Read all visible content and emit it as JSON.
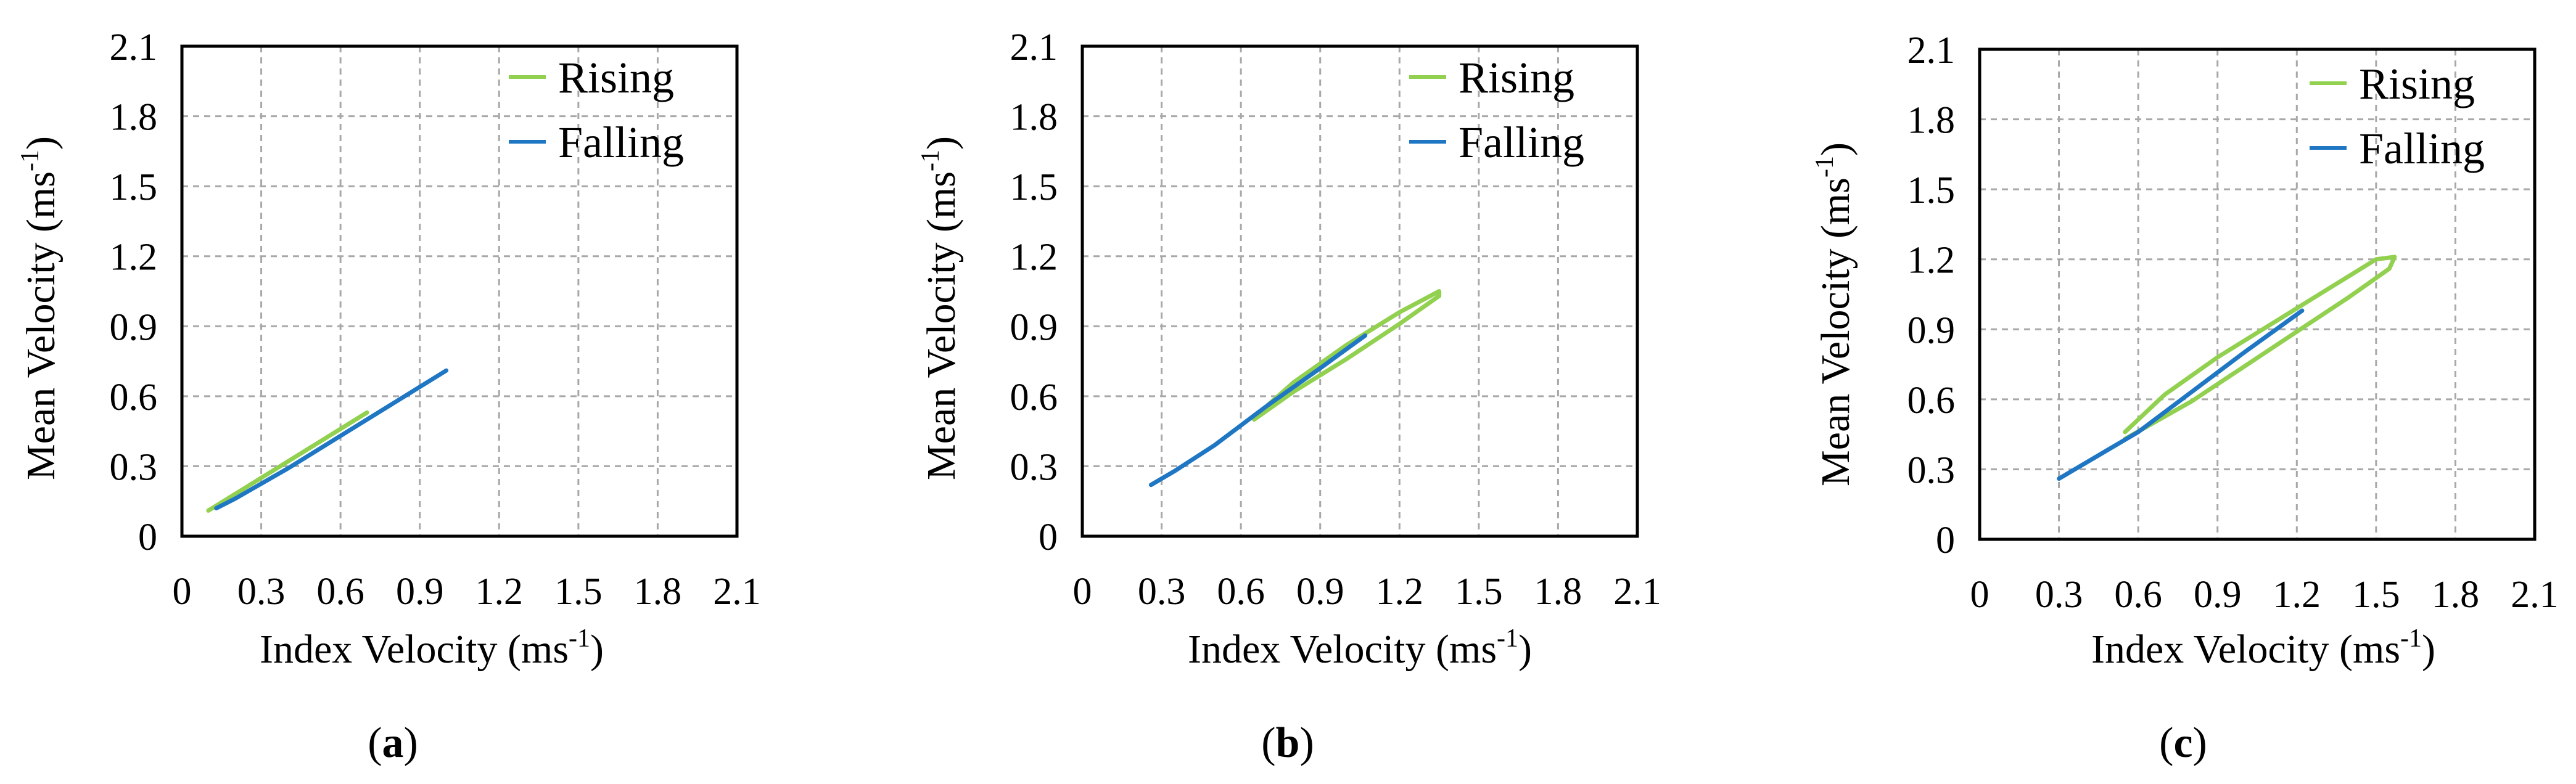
{
  "colors": {
    "rising": "#92d050",
    "falling": "#1f77c4",
    "grid": "#a8a8a8",
    "axis": "#000000"
  },
  "chart_data": [
    {
      "type": "line",
      "panel_label": "a",
      "xlabel": "Index Velocity (ms",
      "xlabel_sup": "-1",
      "xlabel_close": ")",
      "ylabel": "Mean Velocity (ms",
      "ylabel_sup": "-1",
      "ylabel_close": ")",
      "xlim": [
        0,
        2.1
      ],
      "ylim": [
        0,
        2.1
      ],
      "xticks": [
        "0",
        "0.3",
        "0.6",
        "0.9",
        "1.2",
        "1.5",
        "1.8",
        "2.1"
      ],
      "yticks": [
        "0",
        "0.3",
        "0.6",
        "0.9",
        "1.2",
        "1.5",
        "1.8",
        "2.1"
      ],
      "grid": true,
      "legend": "top-right",
      "series": [
        {
          "name": "Rising",
          "color": "#92d050",
          "x": [
            0.1,
            0.3,
            0.5,
            0.7
          ],
          "y": [
            0.11,
            0.25,
            0.39,
            0.53
          ]
        },
        {
          "name": "Falling",
          "color": "#1f77c4",
          "x": [
            1.0,
            0.8,
            0.6,
            0.4,
            0.2,
            0.13
          ],
          "y": [
            0.71,
            0.57,
            0.43,
            0.29,
            0.16,
            0.12
          ]
        }
      ]
    },
    {
      "type": "line",
      "panel_label": "b",
      "xlabel": "Index Velocity (ms",
      "xlabel_sup": "-1",
      "xlabel_close": ")",
      "ylabel": "Mean Velocity (ms",
      "ylabel_sup": "-1",
      "ylabel_close": ")",
      "xlim": [
        0,
        2.1
      ],
      "ylim": [
        0,
        2.1
      ],
      "xticks": [
        "0",
        "0.3",
        "0.6",
        "0.9",
        "1.2",
        "1.5",
        "1.8",
        "2.1"
      ],
      "yticks": [
        "0",
        "0.3",
        "0.6",
        "0.9",
        "1.2",
        "1.5",
        "1.8",
        "2.1"
      ],
      "grid": true,
      "legend": "top-right",
      "series": [
        {
          "name": "Rising",
          "color": "#92d050",
          "x": [
            0.65,
            0.8,
            1.0,
            1.2,
            1.35,
            1.35,
            1.2,
            1.0,
            0.8,
            0.7
          ],
          "y": [
            0.5,
            0.62,
            0.76,
            0.91,
            1.03,
            1.05,
            0.96,
            0.82,
            0.66,
            0.56
          ]
        },
        {
          "name": "Falling",
          "color": "#1f77c4",
          "x": [
            1.07,
            0.9,
            0.7,
            0.5,
            0.35,
            0.26
          ],
          "y": [
            0.86,
            0.72,
            0.56,
            0.39,
            0.28,
            0.22
          ]
        }
      ]
    },
    {
      "type": "line",
      "panel_label": "c",
      "xlabel": "Index Velocity (ms",
      "xlabel_sup": "-1",
      "xlabel_close": ")",
      "ylabel": "Mean Velocity (ms",
      "ylabel_sup": "-1",
      "ylabel_close": ")",
      "xlim": [
        0,
        2.1
      ],
      "ylim": [
        0,
        2.1
      ],
      "xticks": [
        "0",
        "0.3",
        "0.6",
        "0.9",
        "1.2",
        "1.5",
        "1.8",
        "2.1"
      ],
      "yticks": [
        "0",
        "0.3",
        "0.6",
        "0.9",
        "1.2",
        "1.5",
        "1.8",
        "2.1"
      ],
      "grid": true,
      "legend": "top-right",
      "series": [
        {
          "name": "Rising",
          "color": "#92d050",
          "x": [
            0.55,
            0.8,
            1.0,
            1.2,
            1.4,
            1.55,
            1.57,
            1.5,
            1.3,
            1.1,
            0.9,
            0.7,
            0.55
          ],
          "y": [
            0.43,
            0.59,
            0.74,
            0.89,
            1.04,
            1.16,
            1.21,
            1.2,
            1.06,
            0.92,
            0.78,
            0.62,
            0.46
          ]
        },
        {
          "name": "Falling",
          "color": "#1f77c4",
          "x": [
            1.22,
            1.0,
            0.8,
            0.6,
            0.45,
            0.3
          ],
          "y": [
            0.98,
            0.8,
            0.63,
            0.46,
            0.36,
            0.26
          ]
        }
      ]
    }
  ]
}
